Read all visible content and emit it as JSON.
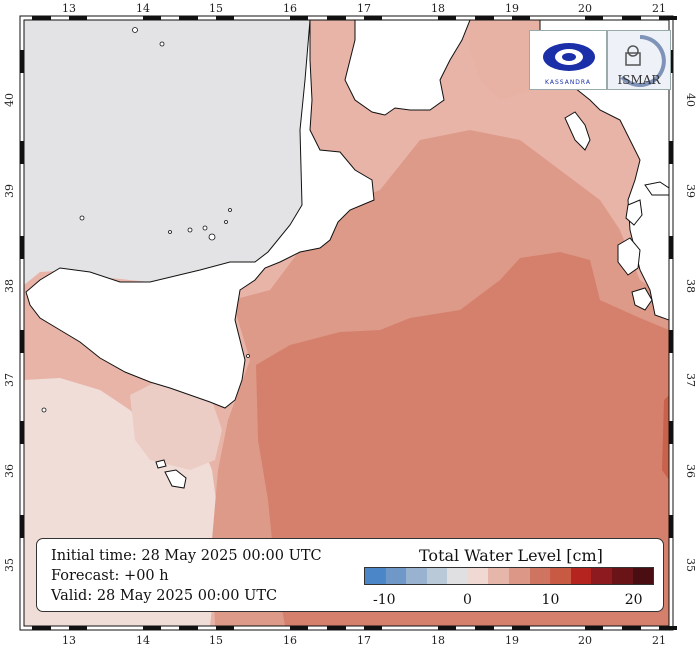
{
  "map": {
    "lon_ticks": [
      "13",
      "14",
      "15",
      "16",
      "17",
      "18",
      "19",
      "20",
      "21"
    ],
    "lat_ticks": [
      "35",
      "36",
      "37",
      "38",
      "39",
      "40"
    ],
    "colors": {
      "land": "#ffffff",
      "sea_light": "#f0d8d2",
      "sea_mid": "#e4aa9d",
      "sea_core": "#d8806d",
      "sea_dark": "#cf6a55",
      "tyrrhenian": "#e3e3e6"
    }
  },
  "info": {
    "initial_time": "Initial time: 28 May 2025 00:00 UTC",
    "forecast": "Forecast: +00 h",
    "valid": "Valid: 28 May 2025 00:00 UTC"
  },
  "legend": {
    "title": "Total Water Level [cm]",
    "colors": [
      "#4a86c8",
      "#6f98c9",
      "#98b2cf",
      "#bac9d8",
      "#e0e0e2",
      "#f0d8d3",
      "#e6b6aa",
      "#dc9787",
      "#cf7461",
      "#c85a44",
      "#b5241e",
      "#8d1a1e",
      "#6b1418",
      "#4a0e12"
    ],
    "ticks": [
      {
        "label": "-10",
        "pos": 0.07
      },
      {
        "label": "0",
        "pos": 0.357
      },
      {
        "label": "10",
        "pos": 0.643
      },
      {
        "label": "20",
        "pos": 0.93
      }
    ]
  },
  "logos": {
    "left_text": "KASSANDRA",
    "right_text": "ISMAR"
  }
}
